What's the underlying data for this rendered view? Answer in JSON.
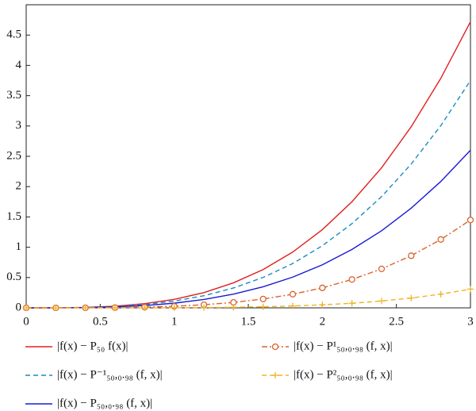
{
  "chart_data": {
    "type": "line",
    "x": [
      0,
      0.2,
      0.4,
      0.6,
      0.8,
      1,
      1.2,
      1.4,
      1.6,
      1.8,
      2,
      2.2,
      2.4,
      2.6,
      2.8,
      3
    ],
    "series": [
      {
        "name": "|f(x) − P₅₀ f(x)|",
        "color": "#e02020",
        "dash": "solid",
        "marker": "none",
        "values": [
          0,
          0.001,
          0.007,
          0.027,
          0.069,
          0.14,
          0.251,
          0.413,
          0.632,
          0.921,
          1.29,
          1.751,
          2.311,
          2.988,
          3.787,
          4.72
        ]
      },
      {
        "name": "|f(x) − P⁻¹₅₀,₀.₉₈ (f, x)|",
        "color": "#1a8cc0",
        "dash": "dashed",
        "marker": "none",
        "values": [
          0,
          0.001,
          0.006,
          0.022,
          0.055,
          0.112,
          0.2,
          0.328,
          0.502,
          0.731,
          1.025,
          1.39,
          1.835,
          2.373,
          3.007,
          3.75
        ]
      },
      {
        "name": "|f(x) − P₅₀,₀.₉₈ (f, x)|",
        "color": "#1a1ad6",
        "dash": "solid",
        "marker": "none",
        "values": [
          0,
          0,
          0.004,
          0.015,
          0.038,
          0.077,
          0.138,
          0.227,
          0.348,
          0.507,
          0.71,
          0.964,
          1.272,
          1.645,
          2.085,
          2.6
        ]
      },
      {
        "name": "|f(x) − P¹₅₀,₀.₉₈ (f, x)|",
        "color": "#d9622b",
        "dash": "dashdot",
        "marker": "circle",
        "values": [
          0,
          0,
          0.001,
          0.004,
          0.012,
          0.026,
          0.051,
          0.09,
          0.146,
          0.225,
          0.33,
          0.468,
          0.643,
          0.86,
          1.128,
          1.45
        ]
      },
      {
        "name": "|f(x) − P²₅₀,₀.₉₈ (f, x)|",
        "color": "#f0b323",
        "dash": "dashed",
        "marker": "plus",
        "values": [
          0,
          0,
          0,
          0,
          0,
          0.002,
          0.005,
          0.01,
          0.018,
          0.031,
          0.05,
          0.076,
          0.113,
          0.162,
          0.226,
          0.309
        ]
      }
    ],
    "xlim": [
      0,
      3
    ],
    "xticks": [
      0,
      0.5,
      1,
      1.5,
      2,
      2.5,
      3
    ],
    "ylim": [
      0,
      5
    ],
    "yticks": [
      0,
      0.5,
      1,
      1.5,
      2,
      2.5,
      3,
      3.5,
      4,
      4.5
    ],
    "grid": false
  }
}
